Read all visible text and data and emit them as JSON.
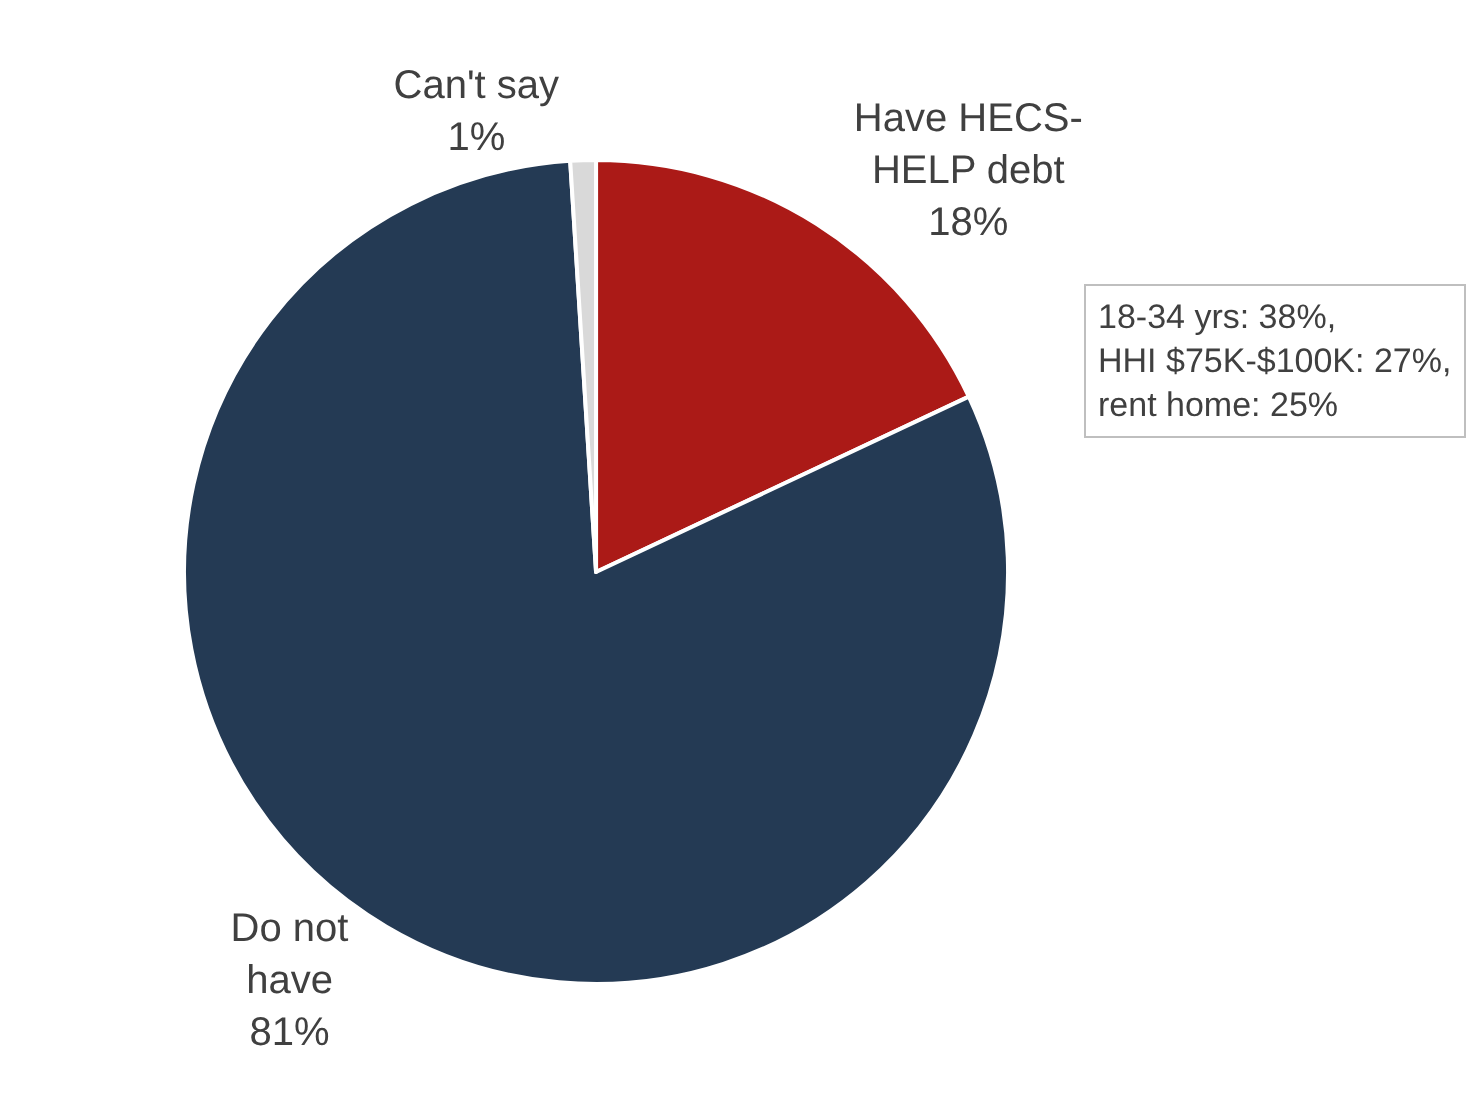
{
  "chart_data": {
    "type": "pie",
    "categories": [
      "Have HECS-HELP debt",
      "Do not have",
      "Can't say"
    ],
    "values": [
      18,
      81,
      1
    ],
    "value_labels": [
      "18%",
      "81%",
      "1%"
    ],
    "colors": [
      "#ab1a17",
      "#243a54",
      "#d9d9d9"
    ],
    "annotations": [
      "18-34 yrs: 38%,\nHHI $75K-$100K: 27%,\nrent home: 25%"
    ],
    "legend": false
  }
}
